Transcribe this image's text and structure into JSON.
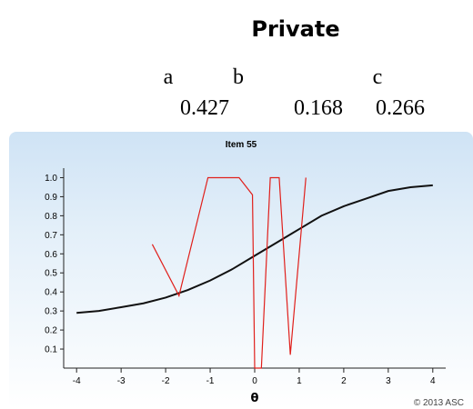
{
  "header": {
    "title": "Private",
    "params": [
      {
        "name": "a",
        "value": "0.427"
      },
      {
        "name": "b",
        "value": "0.168"
      },
      {
        "name": "c",
        "value": "0.266"
      }
    ]
  },
  "chart_data": {
    "type": "line",
    "title": "Item 55",
    "x_label": "θ",
    "footnote": "© 2013 ASC",
    "xlim": [
      -4.29,
      4.29
    ],
    "ylim": [
      0,
      1.05
    ],
    "xticks": [
      -4,
      -3,
      -2,
      -1,
      0,
      1,
      2,
      3,
      4
    ],
    "yticks": [
      0.1,
      0.2,
      0.3,
      0.4,
      0.5,
      0.6,
      0.7,
      0.8,
      0.9,
      {
        "value": 1,
        "label": "1.0"
      }
    ],
    "series": [
      {
        "color": "#111111",
        "x": [
          -4,
          -3.5,
          -3,
          -2.5,
          -2,
          -1.5,
          -1,
          -0.5,
          0,
          0.5,
          1,
          1.5,
          2,
          2.5,
          3,
          3.5,
          4
        ],
        "values": [
          0.29,
          0.3,
          0.32,
          0.34,
          0.37,
          0.41,
          0.46,
          0.52,
          0.59,
          0.66,
          0.73,
          0.8,
          0.85,
          0.89,
          0.93,
          0.95,
          0.96
        ]
      },
      {
        "color": "#e0201c",
        "x": [
          -2.3,
          -1.7,
          -1.05,
          -0.35,
          -0.05,
          0.0,
          0.15,
          0.35,
          0.55,
          0.8,
          1.15
        ],
        "values": [
          0.65,
          0.38,
          1.0,
          1.0,
          0.91,
          0.0,
          0.0,
          1.0,
          1.0,
          0.07,
          1.0
        ]
      }
    ]
  }
}
